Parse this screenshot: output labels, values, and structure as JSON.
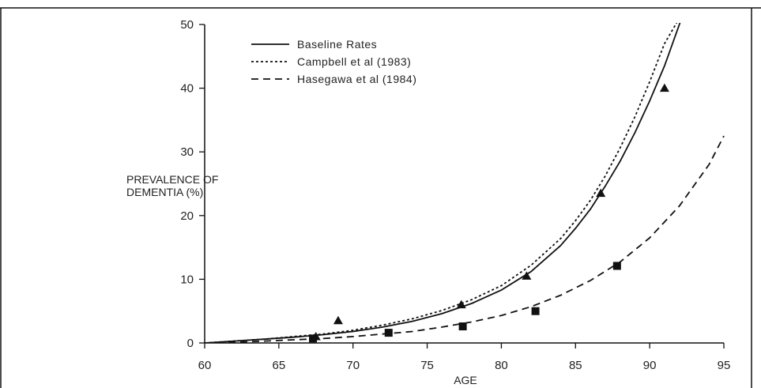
{
  "chart_data": {
    "type": "line",
    "title": "",
    "xlabel": "AGE",
    "ylabel": "PREVALENCE OF DEMENTIA (%)",
    "ylabel_lines": [
      "PREVALENCE OF",
      "DEMENTIA (%)"
    ],
    "xlim": [
      60,
      95
    ],
    "ylim": [
      0,
      50
    ],
    "xticks": [
      "60",
      "65",
      "70",
      "75",
      "80",
      "85",
      "90",
      "95"
    ],
    "yticks": [
      "0",
      "10",
      "20",
      "30",
      "40",
      "50"
    ],
    "grid": false,
    "legend_position": "top-left",
    "series": [
      {
        "name": "Baseline Rates",
        "style": "solid",
        "color": "#111111",
        "x": [
          60,
          62,
          64,
          66,
          68,
          70,
          72,
          74,
          76,
          78,
          80,
          82,
          84,
          85,
          86,
          87,
          88,
          89,
          90,
          91,
          92,
          93
        ],
        "y": [
          0,
          0.3,
          0.6,
          0.9,
          1.3,
          1.8,
          2.5,
          3.4,
          4.6,
          6.2,
          8.3,
          11.2,
          15.3,
          18.0,
          21.0,
          24.6,
          28.5,
          33.0,
          38.0,
          43.5,
          50.0,
          56.5
        ]
      },
      {
        "name": "Campbell et al (1983)",
        "style": "dotted",
        "color": "#111111",
        "x": [
          60,
          62,
          64,
          66,
          68,
          70,
          72,
          74,
          76,
          78,
          80,
          82,
          84,
          85,
          86,
          87,
          88,
          89,
          90,
          91,
          92
        ],
        "y": [
          0,
          0.3,
          0.6,
          1.0,
          1.4,
          2.0,
          2.8,
          3.8,
          5.1,
          6.8,
          9.0,
          12.2,
          16.4,
          19.2,
          22.4,
          26.2,
          30.6,
          35.5,
          41.0,
          47.0,
          51.0
        ]
      },
      {
        "name": "Hasegawa et al (1984)",
        "style": "dashed",
        "color": "#111111",
        "x": [
          60,
          62,
          64,
          66,
          68,
          70,
          72,
          74,
          76,
          78,
          80,
          82,
          84,
          86,
          88,
          90,
          92,
          94,
          95
        ],
        "y": [
          0,
          0.1,
          0.3,
          0.5,
          0.7,
          1.0,
          1.4,
          1.8,
          2.5,
          3.3,
          4.3,
          5.7,
          7.5,
          9.8,
          12.7,
          16.5,
          21.5,
          28.0,
          32.5
        ]
      }
    ],
    "markers": [
      {
        "name": "Campbell et al (1983) data",
        "shape": "triangle",
        "points": [
          {
            "x": 67.5,
            "y": 1.0
          },
          {
            "x": 69.0,
            "y": 3.5
          },
          {
            "x": 77.3,
            "y": 6.0
          },
          {
            "x": 81.7,
            "y": 10.5
          },
          {
            "x": 86.7,
            "y": 23.5
          },
          {
            "x": 91.0,
            "y": 40.0
          }
        ]
      },
      {
        "name": "Hasegawa et al (1984) data",
        "shape": "square",
        "points": [
          {
            "x": 67.3,
            "y": 0.7
          },
          {
            "x": 72.4,
            "y": 1.6
          },
          {
            "x": 77.4,
            "y": 2.6
          },
          {
            "x": 82.3,
            "y": 5.0
          },
          {
            "x": 87.8,
            "y": 12.1
          }
        ]
      }
    ]
  }
}
